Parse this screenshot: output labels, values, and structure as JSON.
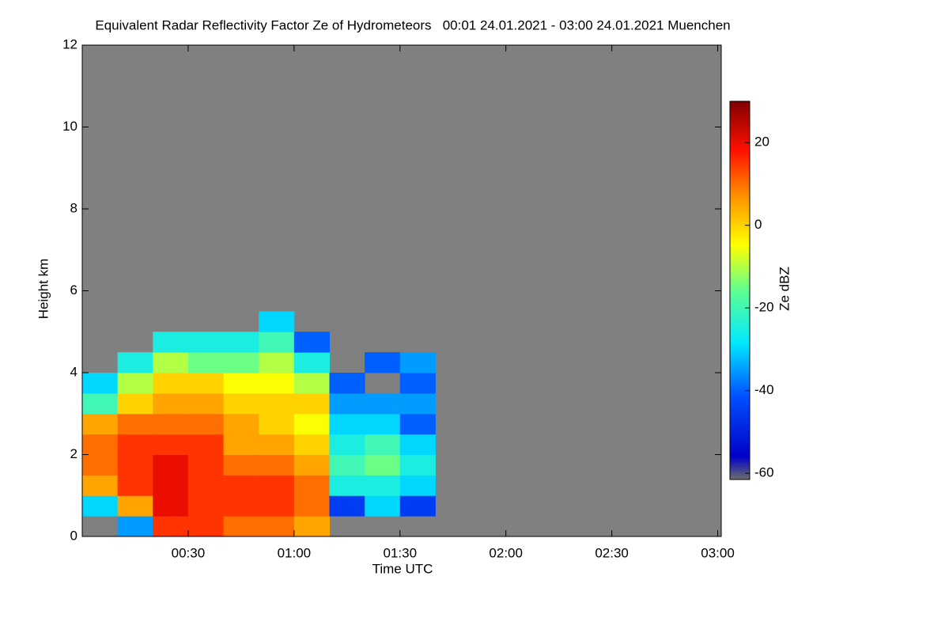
{
  "chart_data": {
    "type": "heatmap",
    "title": "Equivalent Radar Reflectivity Factor Ze of Hydrometeors   00:01 24.01.2021 - 03:00 24.01.2021 Muenchen",
    "x_label": "Time UTC",
    "y_label": "Height km",
    "colorbar_label": "Ze dBZ",
    "xlim": [
      0,
      181
    ],
    "xticks": [
      {
        "value": 30,
        "label": "00:30"
      },
      {
        "value": 60,
        "label": "01:00"
      },
      {
        "value": 90,
        "label": "01:30"
      },
      {
        "value": 120,
        "label": "02:00"
      },
      {
        "value": 150,
        "label": "02:30"
      },
      {
        "value": 180,
        "label": "03:00"
      }
    ],
    "ylim": [
      0,
      12
    ],
    "yticks": [
      0,
      2,
      4,
      6,
      8,
      10,
      12
    ],
    "zlim": [
      -61.5,
      30
    ],
    "zticks": [
      -60,
      -40,
      -20,
      0,
      20
    ],
    "colormap": "jet",
    "background": "#808080",
    "x": [
      5,
      15,
      25,
      35,
      45,
      55,
      65,
      75,
      85,
      95
    ],
    "y": [
      0.25,
      0.75,
      1.25,
      1.75,
      2.25,
      2.75,
      3.25,
      3.75,
      4.25,
      4.75,
      5.25,
      5.75
    ],
    "z": [
      [
        null,
        -30,
        5,
        10,
        10,
        5,
        -20,
        -30,
        null,
        null,
        null,
        null
      ],
      [
        -35,
        5,
        15,
        15,
        15,
        10,
        0,
        -10,
        -25,
        null,
        null,
        null
      ],
      [
        15,
        20,
        20,
        20,
        15,
        10,
        5,
        0,
        -10,
        -25,
        null,
        null
      ],
      [
        15,
        15,
        15,
        15,
        15,
        10,
        5,
        0,
        -15,
        -25,
        null,
        null
      ],
      [
        10,
        15,
        15,
        10,
        5,
        5,
        0,
        -5,
        -15,
        -25,
        null,
        null
      ],
      [
        10,
        15,
        15,
        10,
        5,
        0,
        0,
        -5,
        -10,
        -20,
        -30,
        null
      ],
      [
        5,
        10,
        10,
        5,
        0,
        -5,
        0,
        -10,
        -25,
        -40,
        null,
        null
      ],
      [
        null,
        -45,
        -25,
        -20,
        -25,
        -30,
        -35,
        -40,
        null,
        null,
        null,
        null
      ],
      [
        null,
        -30,
        -25,
        -15,
        -20,
        -30,
        -35,
        null,
        -40,
        null,
        null,
        null
      ],
      [
        null,
        -45,
        -30,
        -25,
        -30,
        -40,
        -35,
        -40,
        -35,
        null,
        null,
        null
      ]
    ]
  }
}
